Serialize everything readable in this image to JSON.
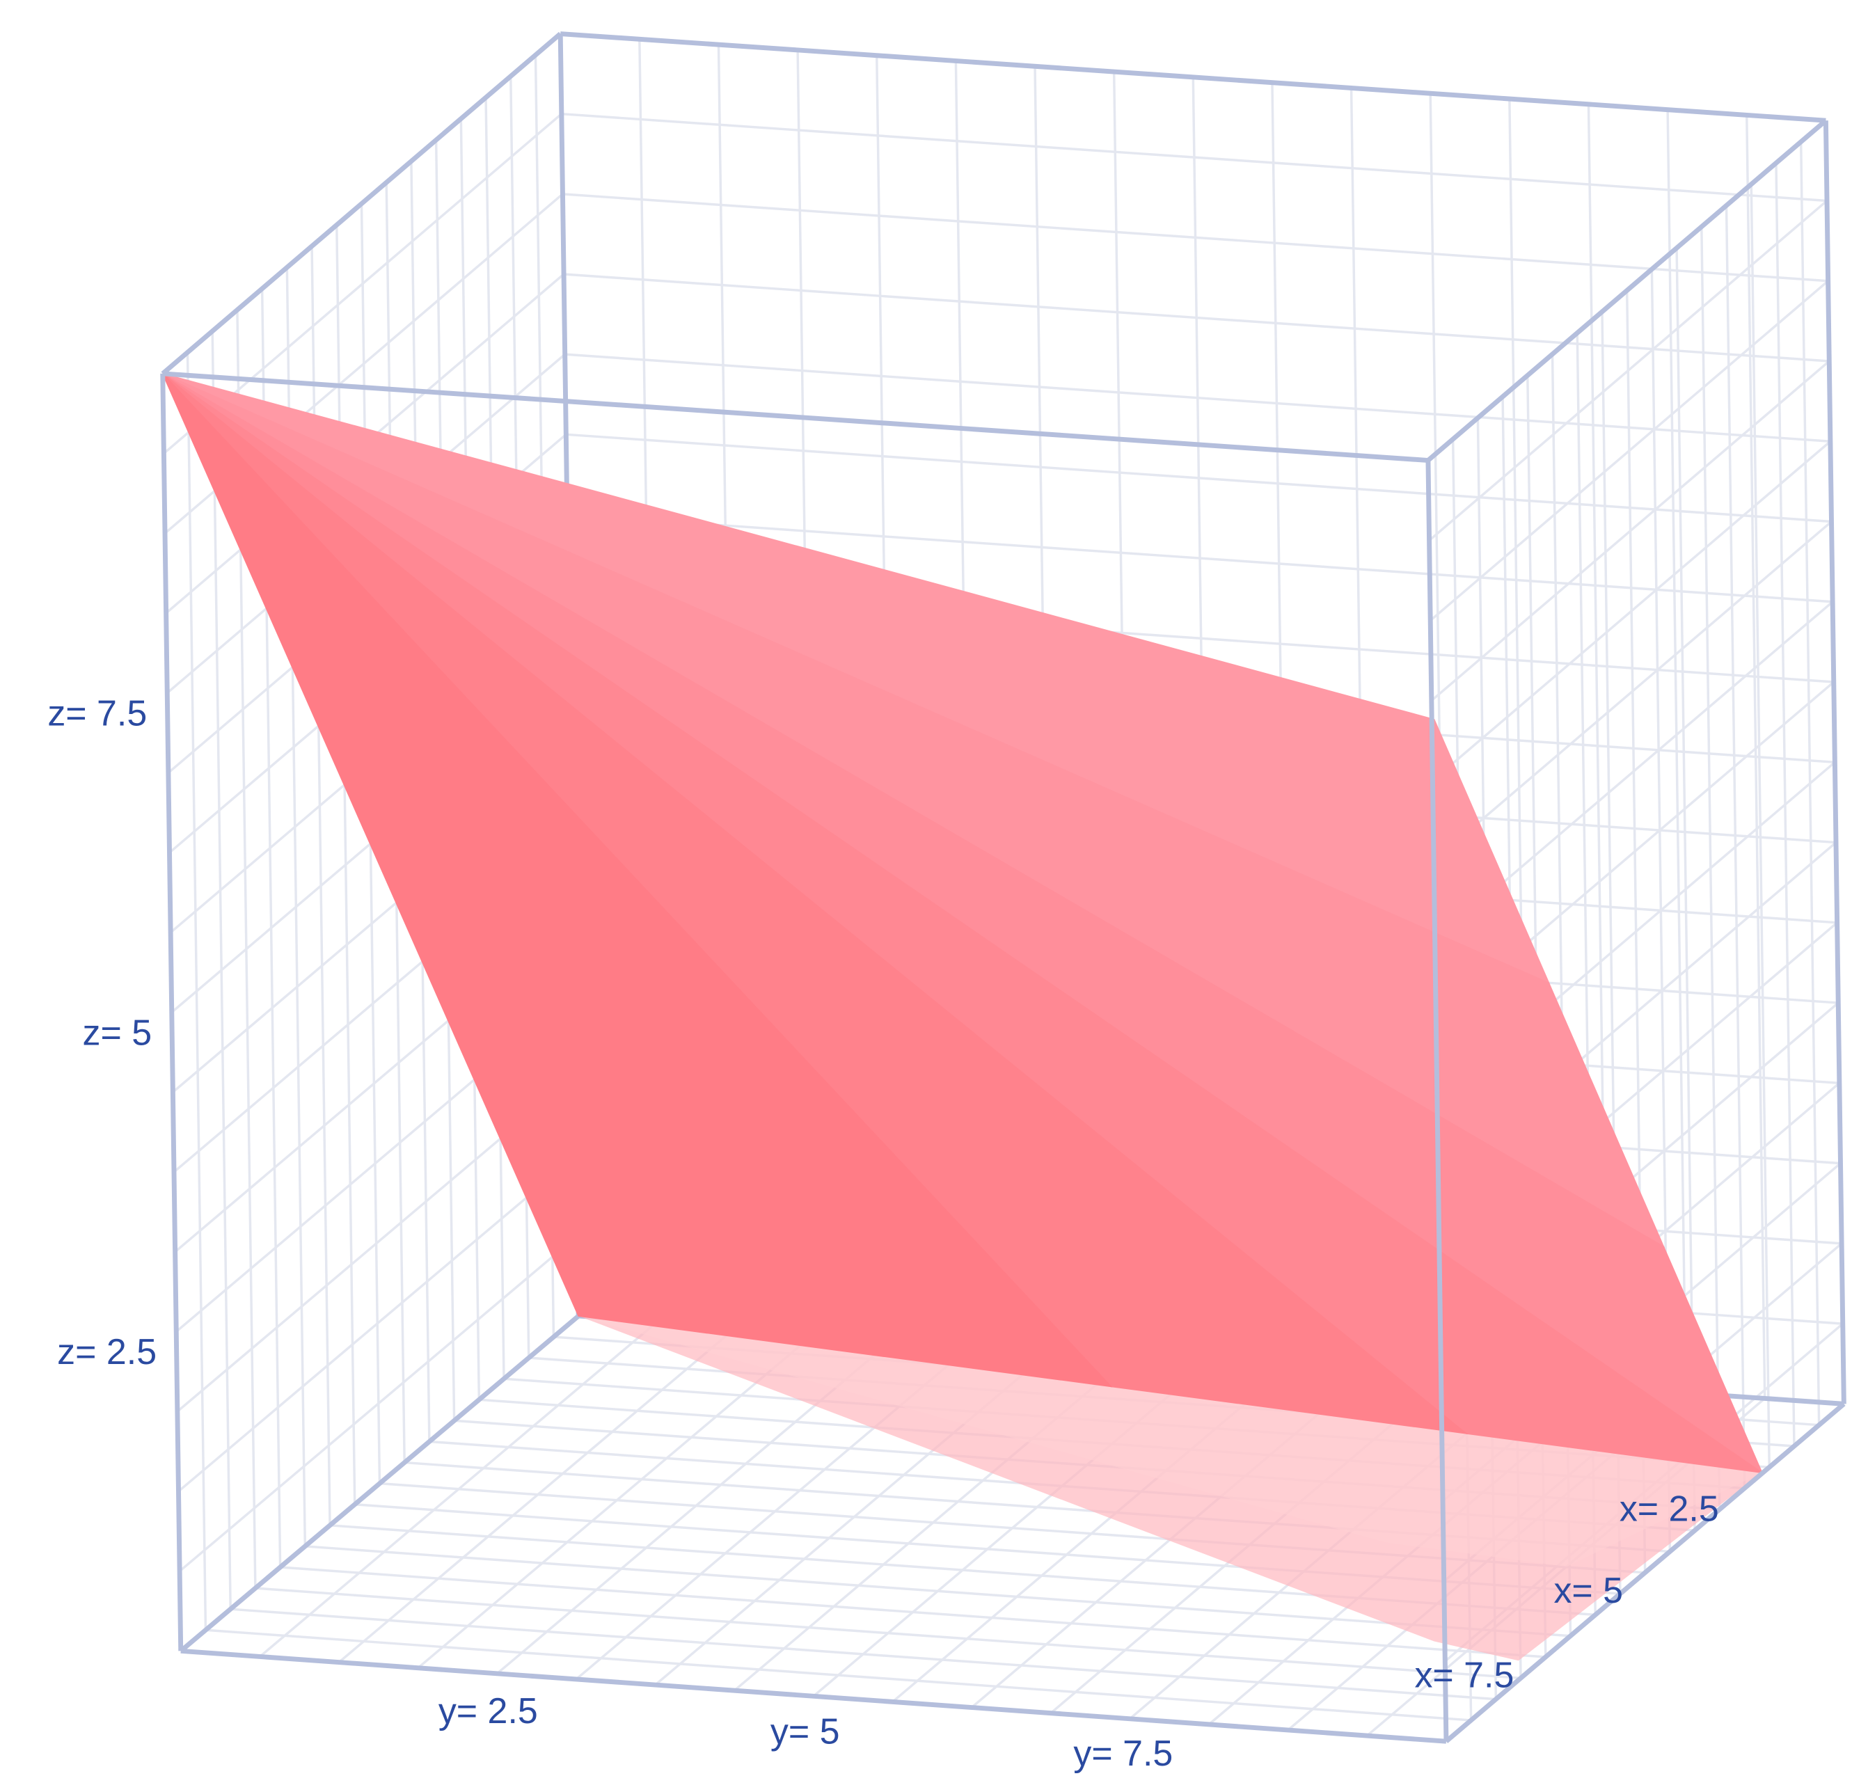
{
  "chart_data": {
    "type": "surface",
    "title": "",
    "surface_color": "#ff7b85",
    "box_color": "#b4bedc",
    "grid_color": "#e4e7f0",
    "label_color": "#2a4aa0",
    "grid": true,
    "z_ticks": [
      "z= 7.5",
      "z= 5",
      "z= 2.5"
    ],
    "y_ticks": [
      "y= 2.5",
      "y= 5",
      "y= 7.5"
    ],
    "x_ticks": [
      "x= 2.5",
      "x= 5",
      "x= 7.5"
    ]
  }
}
